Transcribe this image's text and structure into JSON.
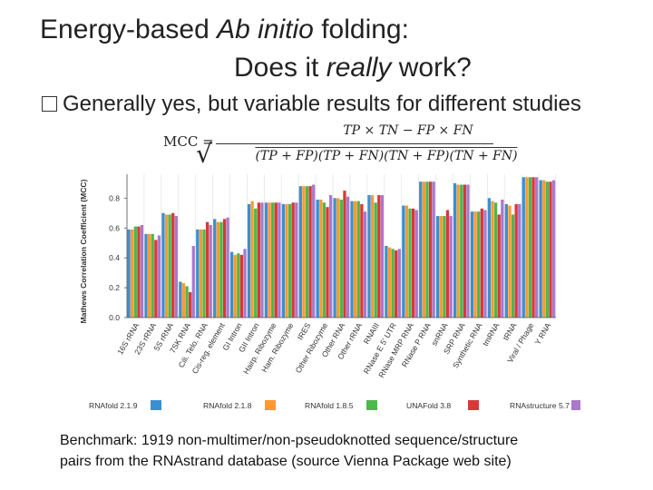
{
  "slide": {
    "title_line1_a": "Energy-based ",
    "title_line1_b": "Ab initio",
    "title_line1_c": " folding:",
    "title_line2_a": "Does it ",
    "title_line2_b": "really",
    "title_line2_c": " work?",
    "bullet": "Generally yes, but variable results for different studies",
    "formula_lhs": "MCC =",
    "formula_numerator": "TP × TN − FP × FN",
    "formula_denominator": "(TP + FP)(TP + FN)(TN + FP)(TN + FN)",
    "caption_line1": "Benchmark: 1919 non-multimer/non-pseudoknotted sequence/structure",
    "caption_line2": "pairs from the RNAstrand database (source Vienna Package web site)"
  },
  "chart_data": {
    "type": "bar",
    "ylabel": "Mathews Correlation Coefficient (MCC)",
    "xlabel": "",
    "ylim": [
      0,
      0.96
    ],
    "yticks": [
      "0.0",
      "0.2",
      "0.4",
      "0.6",
      "0.8"
    ],
    "ytick_values": [
      0,
      0.2,
      0.4,
      0.6,
      0.8
    ],
    "grid": "vertical",
    "legend_position": "bottom",
    "categories": [
      "16S rRNA",
      "23S rRNA",
      "5S rRNA",
      "7SK RNA",
      "Cili. Telo. RNA",
      "Cis-reg. element",
      "GI Intron",
      "GII Intron",
      "Hairp. Ribozyme",
      "Ham. Ribozyme",
      "IRES",
      "Other Ribozyme",
      "Other RNA",
      "Other rRNA",
      "RNAIII",
      "RNase E 5' UTR",
      "RNase MRP RNA",
      "RNase P RNA",
      "snRNA",
      "SRP RNA",
      "Synthetic RNA",
      "tmRNA",
      "tRNA",
      "Viral / Phage",
      "Y RNA"
    ],
    "series": [
      {
        "name": "RNAfold 2.1.9",
        "color": "#3b8fd0",
        "values": [
          0.59,
          0.56,
          0.7,
          0.24,
          0.59,
          0.66,
          0.44,
          0.76,
          0.77,
          0.76,
          0.88,
          0.79,
          0.8,
          0.78,
          0.82,
          0.48,
          0.75,
          0.91,
          0.68,
          0.9,
          0.71,
          0.8,
          0.76,
          0.94,
          0.92
        ]
      },
      {
        "name": "RNAfold 2.1.8",
        "color": "#ff9930",
        "values": [
          0.59,
          0.56,
          0.69,
          0.23,
          0.59,
          0.64,
          0.42,
          0.78,
          0.77,
          0.76,
          0.88,
          0.79,
          0.8,
          0.78,
          0.82,
          0.47,
          0.75,
          0.91,
          0.68,
          0.89,
          0.71,
          0.78,
          0.75,
          0.94,
          0.92
        ]
      },
      {
        "name": "RNAfold 1.8.5",
        "color": "#4cb84c",
        "values": [
          0.61,
          0.56,
          0.69,
          0.21,
          0.59,
          0.64,
          0.43,
          0.73,
          0.77,
          0.76,
          0.88,
          0.77,
          0.79,
          0.78,
          0.77,
          0.46,
          0.73,
          0.91,
          0.68,
          0.89,
          0.71,
          0.77,
          0.69,
          0.94,
          0.91
        ]
      },
      {
        "name": "UNAFold 3.8",
        "color": "#d93838",
        "values": [
          0.61,
          0.52,
          0.7,
          0.17,
          0.64,
          0.66,
          0.42,
          0.77,
          0.77,
          0.77,
          0.88,
          0.74,
          0.85,
          0.76,
          0.82,
          0.45,
          0.73,
          0.91,
          0.72,
          0.89,
          0.73,
          0.69,
          0.76,
          0.94,
          0.91
        ]
      },
      {
        "name": "RNAstructure 5.7",
        "color": "#a979cc",
        "values": [
          0.62,
          0.55,
          0.68,
          0.48,
          0.62,
          0.67,
          0.46,
          0.77,
          0.77,
          0.77,
          0.89,
          0.82,
          0.81,
          0.71,
          0.82,
          0.46,
          0.72,
          0.91,
          0.68,
          0.89,
          0.72,
          0.79,
          0.76,
          0.94,
          0.92
        ]
      }
    ]
  }
}
